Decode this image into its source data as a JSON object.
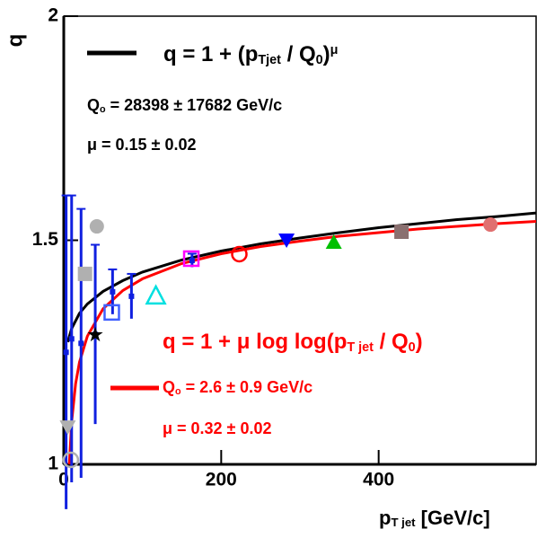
{
  "chart_data": {
    "type": "scatter",
    "xlim": [
      0,
      600
    ],
    "ylim": [
      1,
      2
    ],
    "xticks": [
      0,
      200,
      400
    ],
    "yticks": [
      1,
      1.5,
      2
    ],
    "ylabel": "q",
    "xlabel": [
      "p",
      "T jet",
      " [GeV/c]"
    ],
    "annotations": [
      {
        "parts": [
          "q = 1 + (p",
          "Tjet",
          " / Q",
          "0",
          ")",
          "μ"
        ],
        "color": "#000000"
      },
      {
        "parts": [
          "Q",
          "o",
          " = 28398 ± 17682 GeV/c"
        ],
        "color": "#000000"
      },
      {
        "parts": [
          "μ = 0.15 ± 0.02"
        ],
        "color": "#000000"
      },
      {
        "parts": [
          "q = 1 + μ log log(p",
          "T jet",
          " / Q",
          "0",
          ")"
        ],
        "color": "#ff0000"
      },
      {
        "parts": [
          "Q",
          "o",
          " = 2.6 ± 0.9 GeV/c"
        ],
        "color": "#ff0000"
      },
      {
        "parts": [
          "μ = 0.32 ± 0.02"
        ],
        "color": "#ff0000"
      }
    ],
    "series": [
      {
        "mode": "line",
        "color": "#000000",
        "x": [
          5,
          10,
          20,
          30,
          50,
          75,
          100,
          150,
          200,
          250,
          300,
          350,
          400,
          450,
          500,
          550,
          600
        ],
        "values": [
          1.273,
          1.303,
          1.337,
          1.358,
          1.386,
          1.41,
          1.429,
          1.456,
          1.476,
          1.492,
          1.505,
          1.517,
          1.528,
          1.537,
          1.546,
          1.553,
          1.561
        ]
      },
      {
        "mode": "line",
        "color": "#ff0000",
        "x": [
          7.1,
          10,
          15,
          20,
          30,
          50,
          75,
          100,
          150,
          200,
          250,
          300,
          350,
          400,
          450,
          500,
          550,
          600
        ],
        "values": [
          1,
          1.095,
          1.18,
          1.228,
          1.286,
          1.347,
          1.388,
          1.414,
          1.448,
          1.47,
          1.486,
          1.498,
          1.509,
          1.517,
          1.525,
          1.531,
          1.537,
          1.542
        ]
      },
      {
        "mode": "markers",
        "marker": "bar",
        "color": "#1020e0",
        "x": [
          3,
          10,
          22,
          40,
          62,
          86,
          163
        ],
        "values": [
          1.25,
          1.28,
          1.27,
          1.29,
          1.385,
          1.375,
          1.455
        ],
        "errors": [
          0.35,
          0.32,
          0.3,
          0.2,
          0.05,
          0.05,
          0.015
        ]
      },
      {
        "mode": "markers",
        "marker": "circle",
        "color": "#b0b0b0",
        "x": [
          42
        ],
        "values": [
          1.531
        ]
      },
      {
        "mode": "markers",
        "marker": "square",
        "color": "#b0b0b0",
        "x": [
          27
        ],
        "values": [
          1.425
        ]
      },
      {
        "mode": "markers",
        "marker": "triangle-down",
        "color": "#b0b0b0",
        "x": [
          5
        ],
        "values": [
          1.084
        ]
      },
      {
        "mode": "markers",
        "marker": "circle-open",
        "color": "#b0b0b0",
        "x": [
          9
        ],
        "values": [
          1.01
        ]
      },
      {
        "mode": "markers",
        "marker": "star",
        "color": "#000000",
        "x": [
          40
        ],
        "values": [
          1.289
        ]
      },
      {
        "mode": "markers",
        "marker": "square-open",
        "color": "#4060ff",
        "x": [
          61
        ],
        "values": [
          1.339
        ]
      },
      {
        "mode": "markers",
        "marker": "triangle-up-open",
        "color": "#00e0e0",
        "x": [
          117
        ],
        "values": [
          1.375
        ]
      },
      {
        "mode": "markers",
        "marker": "square-open",
        "color": "#ff00ff",
        "x": [
          162
        ],
        "values": [
          1.459
        ]
      },
      {
        "mode": "markers",
        "marker": "circle-open",
        "color": "#ff0000",
        "x": [
          223
        ],
        "values": [
          1.469
        ]
      },
      {
        "mode": "markers",
        "marker": "triangle-down",
        "color": "#0000ff",
        "x": [
          283
        ],
        "values": [
          1.501
        ]
      },
      {
        "mode": "markers",
        "marker": "triangle-up",
        "color": "#00c000",
        "x": [
          343
        ],
        "values": [
          1.495
        ]
      },
      {
        "mode": "markers",
        "marker": "square",
        "color": "#8a7070",
        "x": [
          429
        ],
        "values": [
          1.519
        ]
      },
      {
        "mode": "markers",
        "marker": "circle",
        "color": "#e07070",
        "x": [
          542
        ],
        "values": [
          1.535
        ]
      }
    ]
  }
}
